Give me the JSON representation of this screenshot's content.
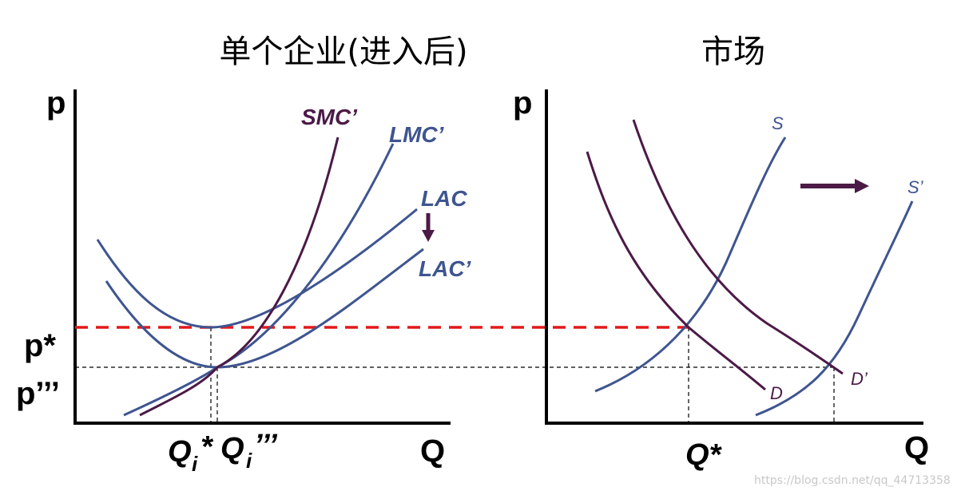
{
  "left_panel": {
    "title": "单个企业(进入后)",
    "y_axis_label": "p",
    "x_axis_label": "Q",
    "price_labels": {
      "p_star": "p*",
      "p_triple": "p’’’"
    },
    "q_labels": {
      "q_star_main": "Q",
      "q_star_sub": "i",
      "q_star_suffix": "*",
      "q_triple_main": "Q",
      "q_triple_sub": "i",
      "q_triple_suffix": "’’’"
    },
    "curve_labels": {
      "smc": "SMC’",
      "lmc": "LMC’",
      "lac": "LAC",
      "lac_prime": "LAC’"
    }
  },
  "right_panel": {
    "title": "市场",
    "y_axis_label": "p",
    "x_axis_label": "Q",
    "q_label": "Q*",
    "curve_labels": {
      "s": "S",
      "s_prime": "S’",
      "d": "D",
      "d_prime": "D’"
    }
  },
  "watermark": "https://blog.csdn.net/qq_44713358",
  "colors": {
    "blue": "#3f5590",
    "purple": "#4b1a47",
    "red": "#e11a1a",
    "black": "#000000"
  }
}
